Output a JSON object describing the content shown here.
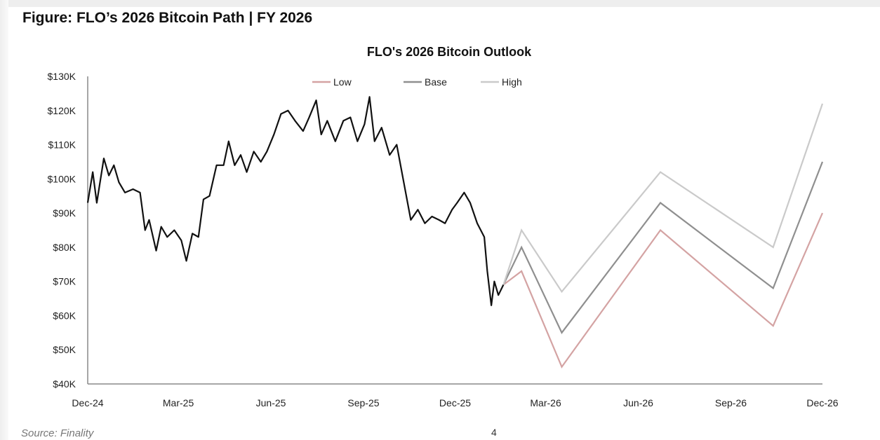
{
  "figure_title": "Figure: FLO’s 2026 Bitcoin Path | FY 2026",
  "source": "Source: Finality",
  "page_number": "4",
  "chart_data": {
    "type": "line",
    "title": "FLO's 2026 Bitcoin Outlook",
    "xlabel": "",
    "ylabel": "",
    "x_range": [
      "2024-12-01",
      "2026-12-01"
    ],
    "ylim": [
      40000,
      130000
    ],
    "y_ticks": [
      40000,
      50000,
      60000,
      70000,
      80000,
      90000,
      100000,
      110000,
      120000,
      130000
    ],
    "y_tick_labels": [
      "$40K",
      "$50K",
      "$60K",
      "$70K",
      "$80K",
      "$90K",
      "$100K",
      "$110K",
      "$120K",
      "$130K"
    ],
    "x_ticks": [
      "2024-12-01",
      "2025-03-01",
      "2025-06-01",
      "2025-09-01",
      "2025-12-01",
      "2026-03-01",
      "2026-06-01",
      "2026-09-01",
      "2026-12-01"
    ],
    "x_tick_labels": [
      "Dec-24",
      "Mar-25",
      "Jun-25",
      "Sep-25",
      "Dec-25",
      "Mar-26",
      "Jun-26",
      "Sep-26",
      "Dec-26"
    ],
    "grid": false,
    "legend_position": "top-center",
    "historical": {
      "color": "#111111",
      "x": [
        "2024-12-01",
        "2024-12-06",
        "2024-12-10",
        "2024-12-17",
        "2024-12-22",
        "2024-12-27",
        "2025-01-01",
        "2025-01-07",
        "2025-01-15",
        "2025-01-22",
        "2025-01-27",
        "2025-01-31",
        "2025-02-07",
        "2025-02-12",
        "2025-02-18",
        "2025-02-25",
        "2025-03-04",
        "2025-03-09",
        "2025-03-15",
        "2025-03-21",
        "2025-03-26",
        "2025-04-01",
        "2025-04-08",
        "2025-04-15",
        "2025-04-20",
        "2025-04-26",
        "2025-05-02",
        "2025-05-08",
        "2025-05-15",
        "2025-05-22",
        "2025-05-28",
        "2025-06-04",
        "2025-06-11",
        "2025-06-18",
        "2025-06-25",
        "2025-07-03",
        "2025-07-09",
        "2025-07-16",
        "2025-07-21",
        "2025-07-27",
        "2025-08-04",
        "2025-08-12",
        "2025-08-19",
        "2025-08-26",
        "2025-09-02",
        "2025-09-07",
        "2025-09-12",
        "2025-09-19",
        "2025-09-27",
        "2025-10-04",
        "2025-10-11",
        "2025-10-18",
        "2025-10-25",
        "2025-11-01",
        "2025-11-08",
        "2025-11-15",
        "2025-11-21",
        "2025-11-28",
        "2025-12-03",
        "2025-12-10",
        "2025-12-16",
        "2025-12-23",
        "2025-12-30",
        "2026-01-02",
        "2026-01-06",
        "2026-01-09",
        "2026-01-13",
        "2026-01-18"
      ],
      "y": [
        93000,
        102000,
        93000,
        106000,
        101000,
        104000,
        99000,
        96000,
        97000,
        96000,
        85000,
        88000,
        79000,
        86000,
        83000,
        85000,
        82000,
        76000,
        84000,
        83000,
        94000,
        95000,
        104000,
        104000,
        111000,
        104000,
        107000,
        102000,
        108000,
        105000,
        108000,
        113000,
        119000,
        120000,
        117000,
        114000,
        118000,
        123000,
        113000,
        117000,
        111000,
        117000,
        118000,
        111000,
        116000,
        124000,
        111000,
        115000,
        107000,
        110000,
        99000,
        88000,
        91000,
        87000,
        89000,
        88000,
        87000,
        91000,
        93000,
        96000,
        93000,
        87000,
        83000,
        73000,
        63000,
        70000,
        66000,
        69000
      ]
    },
    "scenario_x": [
      "2026-01-18",
      "2026-02-05",
      "2026-03-17",
      "2026-06-23",
      "2026-10-13",
      "2026-12-01"
    ],
    "series": [
      {
        "name": "Low",
        "color": "#d4a3a3",
        "values": [
          69000,
          73000,
          45000,
          85000,
          57000,
          90000
        ]
      },
      {
        "name": "Base",
        "color": "#8f8f8f",
        "values": [
          69000,
          80000,
          55000,
          93000,
          68000,
          105000
        ]
      },
      {
        "name": "High",
        "color": "#cacaca",
        "values": [
          69000,
          85000,
          67000,
          102000,
          80000,
          122000
        ]
      }
    ]
  }
}
